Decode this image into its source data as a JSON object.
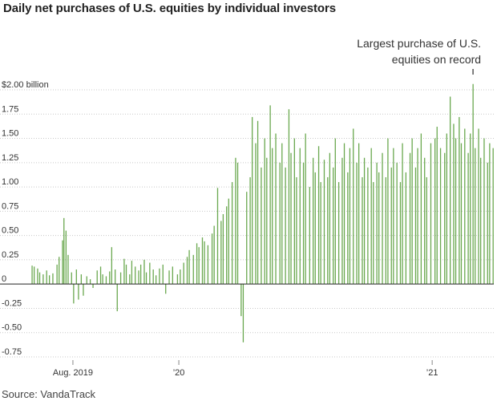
{
  "chart_data": {
    "type": "bar",
    "title": "Daily net purchases of U.S. equities by individual investors",
    "y_unit": "billion",
    "ylim": [
      -0.75,
      2.0
    ],
    "y_ticks": [
      {
        "value": 2.0,
        "label": "$2.00 billion"
      },
      {
        "value": 1.75,
        "label": "1.75"
      },
      {
        "value": 1.5,
        "label": "1.50"
      },
      {
        "value": 1.25,
        "label": "1.25"
      },
      {
        "value": 1.0,
        "label": "1.00"
      },
      {
        "value": 0.75,
        "label": "0.75"
      },
      {
        "value": 0.5,
        "label": "0.50"
      },
      {
        "value": 0.25,
        "label": "0.25"
      },
      {
        "value": 0,
        "label": "0"
      },
      {
        "value": -0.25,
        "label": "-0.25"
      },
      {
        "value": -0.5,
        "label": "-0.50"
      },
      {
        "value": -0.75,
        "label": "-0.75"
      }
    ],
    "x_range": [
      "2019-06-03",
      "2021-03-31"
    ],
    "x_ticks": [
      {
        "date": "2019-08-01",
        "label": "Aug. 2019"
      },
      {
        "date": "2020-01-01",
        "label": "’20"
      },
      {
        "date": "2021-01-01",
        "label": "’21"
      }
    ],
    "grid": "horizontal",
    "bar_color": "#6aa84f",
    "annotation": {
      "lines": [
        "Largest purchase of U.S.",
        "equities on record"
      ],
      "date": "2021-03-01",
      "value": 2.06
    },
    "series": [
      {
        "values": [
          {
            "date": "2019-06-03",
            "value": 0.19
          },
          {
            "date": "2019-06-06",
            "value": 0.18
          },
          {
            "date": "2019-06-11",
            "value": 0.16
          },
          {
            "date": "2019-06-14",
            "value": 0.12
          },
          {
            "date": "2019-06-19",
            "value": 0.1
          },
          {
            "date": "2019-06-24",
            "value": 0.14
          },
          {
            "date": "2019-06-28",
            "value": 0.09
          },
          {
            "date": "2019-07-03",
            "value": 0.11
          },
          {
            "date": "2019-07-09",
            "value": 0.2
          },
          {
            "date": "2019-07-12",
            "value": 0.28
          },
          {
            "date": "2019-07-17",
            "value": 0.45
          },
          {
            "date": "2019-07-19",
            "value": 0.68
          },
          {
            "date": "2019-07-22",
            "value": 0.55
          },
          {
            "date": "2019-07-25",
            "value": 0.3
          },
          {
            "date": "2019-07-30",
            "value": 0.12
          },
          {
            "date": "2019-08-02",
            "value": -0.2
          },
          {
            "date": "2019-08-06",
            "value": 0.15
          },
          {
            "date": "2019-08-09",
            "value": -0.16
          },
          {
            "date": "2019-08-13",
            "value": 0.1
          },
          {
            "date": "2019-08-16",
            "value": -0.12
          },
          {
            "date": "2019-08-21",
            "value": 0.08
          },
          {
            "date": "2019-08-26",
            "value": 0.05
          },
          {
            "date": "2019-08-30",
            "value": -0.04
          },
          {
            "date": "2019-09-05",
            "value": 0.14
          },
          {
            "date": "2019-09-10",
            "value": 0.18
          },
          {
            "date": "2019-09-13",
            "value": 0.1
          },
          {
            "date": "2019-09-18",
            "value": 0.08
          },
          {
            "date": "2019-09-23",
            "value": 0.13
          },
          {
            "date": "2019-09-26",
            "value": 0.38
          },
          {
            "date": "2019-10-01",
            "value": 0.15
          },
          {
            "date": "2019-10-04",
            "value": -0.28
          },
          {
            "date": "2019-10-09",
            "value": 0.12
          },
          {
            "date": "2019-10-14",
            "value": 0.26
          },
          {
            "date": "2019-10-17",
            "value": 0.2
          },
          {
            "date": "2019-10-22",
            "value": 0.1
          },
          {
            "date": "2019-10-25",
            "value": 0.24
          },
          {
            "date": "2019-10-30",
            "value": 0.18
          },
          {
            "date": "2019-11-04",
            "value": 0.14
          },
          {
            "date": "2019-11-07",
            "value": 0.2
          },
          {
            "date": "2019-11-12",
            "value": 0.25
          },
          {
            "date": "2019-11-15",
            "value": 0.12
          },
          {
            "date": "2019-11-20",
            "value": 0.22
          },
          {
            "date": "2019-11-25",
            "value": 0.15
          },
          {
            "date": "2019-11-29",
            "value": 0.09
          },
          {
            "date": "2019-12-04",
            "value": 0.16
          },
          {
            "date": "2019-12-09",
            "value": 0.2
          },
          {
            "date": "2019-12-13",
            "value": -0.1
          },
          {
            "date": "2019-12-18",
            "value": 0.14
          },
          {
            "date": "2019-12-23",
            "value": 0.18
          },
          {
            "date": "2019-12-30",
            "value": 0.1
          },
          {
            "date": "2020-01-03",
            "value": 0.15
          },
          {
            "date": "2020-01-08",
            "value": 0.22
          },
          {
            "date": "2020-01-13",
            "value": 0.28
          },
          {
            "date": "2020-01-16",
            "value": 0.35
          },
          {
            "date": "2020-01-22",
            "value": 0.3
          },
          {
            "date": "2020-01-27",
            "value": 0.42
          },
          {
            "date": "2020-01-30",
            "value": 0.38
          },
          {
            "date": "2020-02-04",
            "value": 0.48
          },
          {
            "date": "2020-02-07",
            "value": 0.44
          },
          {
            "date": "2020-02-12",
            "value": 0.4
          },
          {
            "date": "2020-02-18",
            "value": 0.52
          },
          {
            "date": "2020-02-21",
            "value": 0.6
          },
          {
            "date": "2020-02-26",
            "value": 0.99
          },
          {
            "date": "2020-03-02",
            "value": 0.65
          },
          {
            "date": "2020-03-05",
            "value": 0.72
          },
          {
            "date": "2020-03-10",
            "value": 0.8
          },
          {
            "date": "2020-03-13",
            "value": 0.88
          },
          {
            "date": "2020-03-18",
            "value": 1.05
          },
          {
            "date": "2020-03-23",
            "value": 1.3
          },
          {
            "date": "2020-03-26",
            "value": 1.25
          },
          {
            "date": "2020-03-31",
            "value": -0.33
          },
          {
            "date": "2020-04-03",
            "value": -0.6
          },
          {
            "date": "2020-04-08",
            "value": 0.95
          },
          {
            "date": "2020-04-13",
            "value": 1.1
          },
          {
            "date": "2020-04-16",
            "value": 1.72
          },
          {
            "date": "2020-04-21",
            "value": 1.45
          },
          {
            "date": "2020-04-24",
            "value": 1.68
          },
          {
            "date": "2020-04-29",
            "value": 1.2
          },
          {
            "date": "2020-05-04",
            "value": 1.5
          },
          {
            "date": "2020-05-07",
            "value": 1.3
          },
          {
            "date": "2020-05-12",
            "value": 1.84
          },
          {
            "date": "2020-05-15",
            "value": 1.4
          },
          {
            "date": "2020-05-20",
            "value": 1.55
          },
          {
            "date": "2020-05-26",
            "value": 1.25
          },
          {
            "date": "2020-05-29",
            "value": 1.45
          },
          {
            "date": "2020-06-03",
            "value": 1.2
          },
          {
            "date": "2020-06-08",
            "value": 1.8
          },
          {
            "date": "2020-06-11",
            "value": 1.35
          },
          {
            "date": "2020-06-16",
            "value": 1.5
          },
          {
            "date": "2020-06-19",
            "value": 1.1
          },
          {
            "date": "2020-06-24",
            "value": 1.4
          },
          {
            "date": "2020-06-29",
            "value": 1.25
          },
          {
            "date": "2020-07-02",
            "value": 1.55
          },
          {
            "date": "2020-07-08",
            "value": 1.0
          },
          {
            "date": "2020-07-13",
            "value": 1.3
          },
          {
            "date": "2020-07-16",
            "value": 1.15
          },
          {
            "date": "2020-07-21",
            "value": 1.42
          },
          {
            "date": "2020-07-24",
            "value": 1.05
          },
          {
            "date": "2020-07-29",
            "value": 1.28
          },
          {
            "date": "2020-08-03",
            "value": 1.1
          },
          {
            "date": "2020-08-06",
            "value": 1.35
          },
          {
            "date": "2020-08-11",
            "value": 1.2
          },
          {
            "date": "2020-08-14",
            "value": 1.5
          },
          {
            "date": "2020-08-19",
            "value": 1.05
          },
          {
            "date": "2020-08-24",
            "value": 1.3
          },
          {
            "date": "2020-08-27",
            "value": 1.45
          },
          {
            "date": "2020-09-01",
            "value": 1.15
          },
          {
            "date": "2020-09-04",
            "value": 1.4
          },
          {
            "date": "2020-09-09",
            "value": 1.6
          },
          {
            "date": "2020-09-14",
            "value": 1.25
          },
          {
            "date": "2020-09-17",
            "value": 1.45
          },
          {
            "date": "2020-09-22",
            "value": 1.1
          },
          {
            "date": "2020-09-25",
            "value": 1.3
          },
          {
            "date": "2020-09-30",
            "value": 1.2
          },
          {
            "date": "2020-10-05",
            "value": 1.4
          },
          {
            "date": "2020-10-08",
            "value": 1.05
          },
          {
            "date": "2020-10-13",
            "value": 1.25
          },
          {
            "date": "2020-10-16",
            "value": 1.15
          },
          {
            "date": "2020-10-21",
            "value": 1.35
          },
          {
            "date": "2020-10-26",
            "value": 1.1
          },
          {
            "date": "2020-10-29",
            "value": 1.5
          },
          {
            "date": "2020-11-03",
            "value": 1.2
          },
          {
            "date": "2020-11-06",
            "value": 1.4
          },
          {
            "date": "2020-11-11",
            "value": 1.25
          },
          {
            "date": "2020-11-16",
            "value": 1.05
          },
          {
            "date": "2020-11-19",
            "value": 1.45
          },
          {
            "date": "2020-11-24",
            "value": 1.15
          },
          {
            "date": "2020-11-30",
            "value": 1.35
          },
          {
            "date": "2020-12-03",
            "value": 1.5
          },
          {
            "date": "2020-12-08",
            "value": 1.2
          },
          {
            "date": "2020-12-11",
            "value": 1.4
          },
          {
            "date": "2020-12-16",
            "value": 1.55
          },
          {
            "date": "2020-12-21",
            "value": 1.3
          },
          {
            "date": "2020-12-24",
            "value": 1.1
          },
          {
            "date": "2020-12-30",
            "value": 1.45
          },
          {
            "date": "2021-01-05",
            "value": 1.5
          },
          {
            "date": "2021-01-08",
            "value": 1.62
          },
          {
            "date": "2021-01-13",
            "value": 1.4
          },
          {
            "date": "2021-01-19",
            "value": 1.35
          },
          {
            "date": "2021-01-22",
            "value": 1.55
          },
          {
            "date": "2021-01-27",
            "value": 1.93
          },
          {
            "date": "2021-02-01",
            "value": 1.65
          },
          {
            "date": "2021-02-04",
            "value": 1.5
          },
          {
            "date": "2021-02-09",
            "value": 1.72
          },
          {
            "date": "2021-02-12",
            "value": 1.45
          },
          {
            "date": "2021-02-17",
            "value": 1.6
          },
          {
            "date": "2021-02-22",
            "value": 1.35
          },
          {
            "date": "2021-02-25",
            "value": 1.55
          },
          {
            "date": "2021-03-01",
            "value": 2.06
          },
          {
            "date": "2021-03-04",
            "value": 1.4
          },
          {
            "date": "2021-03-09",
            "value": 1.6
          },
          {
            "date": "2021-03-12",
            "value": 1.3
          },
          {
            "date": "2021-03-17",
            "value": 1.5
          },
          {
            "date": "2021-03-22",
            "value": 1.25
          },
          {
            "date": "2021-03-25",
            "value": 1.45
          },
          {
            "date": "2021-03-30",
            "value": 1.4
          }
        ]
      }
    ]
  },
  "source": "Source: VandaTrack"
}
